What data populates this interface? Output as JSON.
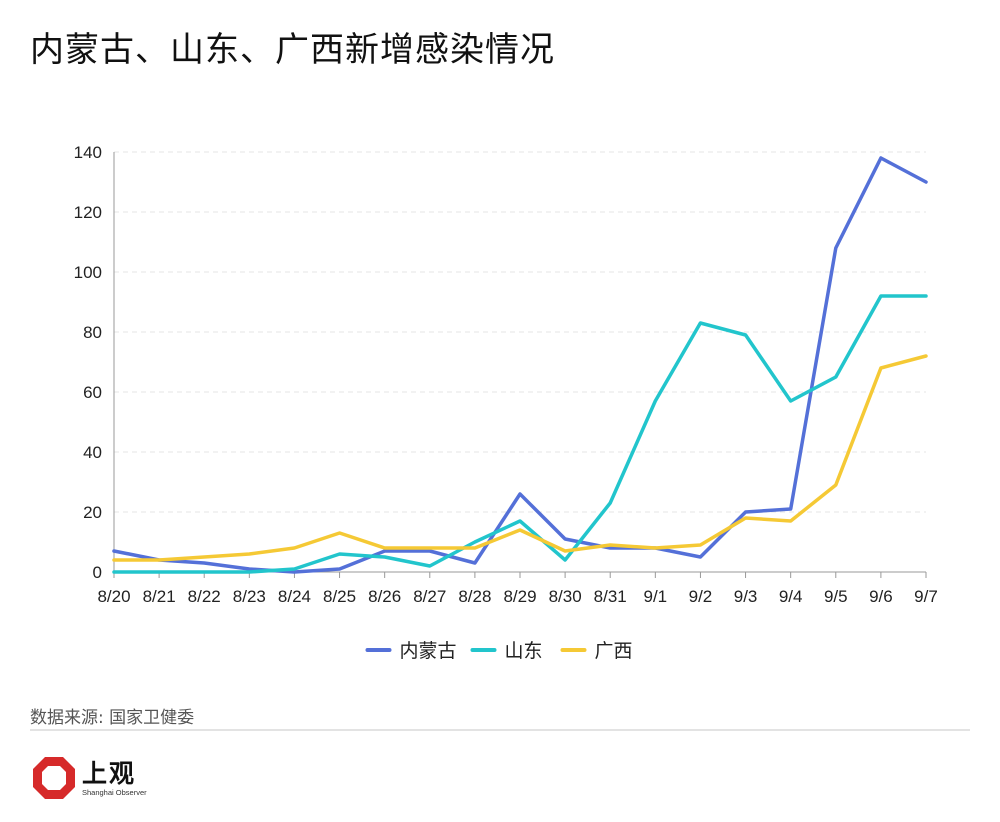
{
  "title": "内蒙古、山东、广西新增感染情况",
  "source": "数据来源: 国家卫健委",
  "brand": {
    "name": "上观",
    "subtitle": "Shanghai Observer",
    "logo_icon": "octagon-logo-icon",
    "logo_color": "#d62a2a"
  },
  "chart_data": {
    "type": "line",
    "title": "内蒙古、山东、广西新增感染情况",
    "xlabel": "",
    "ylabel": "",
    "categories": [
      "8/20",
      "8/21",
      "8/22",
      "8/23",
      "8/24",
      "8/25",
      "8/26",
      "8/27",
      "8/28",
      "8/29",
      "8/30",
      "8/31",
      "9/1",
      "9/2",
      "9/3",
      "9/4",
      "9/5",
      "9/6",
      "9/7"
    ],
    "ylim": [
      0,
      140
    ],
    "yticks": [
      0,
      20,
      40,
      60,
      80,
      100,
      120,
      140
    ],
    "grid": true,
    "legend_position": "bottom-center",
    "series": [
      {
        "name": "内蒙古",
        "color": "#5470d8",
        "values": [
          7,
          4,
          3,
          1,
          0,
          1,
          7,
          7,
          3,
          26,
          11,
          8,
          8,
          5,
          20,
          21,
          108,
          138,
          130
        ]
      },
      {
        "name": "山东",
        "color": "#22c5cc",
        "values": [
          0,
          0,
          0,
          0,
          1,
          6,
          5,
          2,
          10,
          17,
          4,
          23,
          57,
          83,
          79,
          57,
          65,
          92,
          92
        ]
      },
      {
        "name": "广西",
        "color": "#f5c935",
        "values": [
          4,
          4,
          5,
          6,
          8,
          13,
          8,
          8,
          8,
          14,
          7,
          9,
          8,
          9,
          18,
          17,
          29,
          68,
          72
        ]
      }
    ]
  }
}
